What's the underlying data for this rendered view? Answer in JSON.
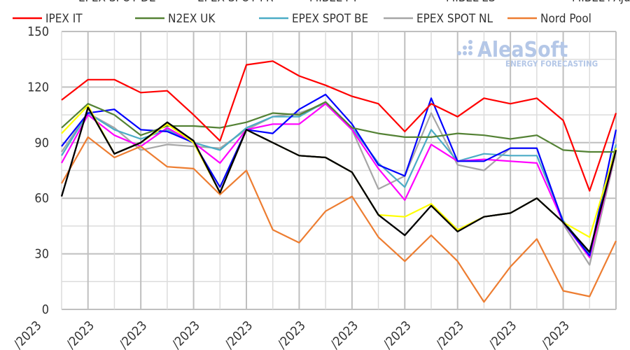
{
  "chart_data": {
    "type": "line",
    "title": "",
    "xlabel": "",
    "ylabel": "",
    "ylim": [
      0,
      150
    ],
    "yticks": [
      "0",
      "30",
      "60",
      "90",
      "120",
      "150"
    ],
    "x_tick_labels": [
      "/2023",
      "/2023",
      "/2023",
      "/2023",
      "/2023",
      "/2023",
      "/2023",
      "/2023",
      "/2023",
      "/2023",
      "/2023"
    ],
    "grid": true,
    "legend_position": "top",
    "series": [
      {
        "name": "EPEX SPOT DE",
        "color": "#0000ff",
        "values": [
          88,
          106,
          108,
          97,
          96,
          90,
          66,
          97,
          95,
          108,
          116,
          100,
          78,
          72,
          114,
          80,
          80,
          87,
          87,
          47,
          29,
          97
        ]
      },
      {
        "name": "EPEX SPOT FR",
        "color": "#ff00ff",
        "values": [
          79,
          105,
          94,
          88,
          98,
          90,
          79,
          97,
          100,
          100,
          111,
          97,
          76,
          59,
          89,
          80,
          81,
          80,
          79,
          47,
          28,
          86
        ]
      },
      {
        "name": "MIBEL PT",
        "color": "#1a1a1a",
        "values": [
          61,
          109,
          84,
          90,
          101,
          91,
          63,
          97,
          90,
          83,
          82,
          74,
          51,
          40,
          56,
          42,
          50,
          52,
          60,
          47,
          31,
          86
        ]
      },
      {
        "name": "MIBEL ES",
        "color": "#000000",
        "values": [
          61,
          109,
          84,
          90,
          101,
          91,
          63,
          97,
          90,
          83,
          82,
          74,
          51,
          40,
          56,
          42,
          50,
          52,
          60,
          47,
          31,
          86
        ]
      },
      {
        "name": "MIBEL+Ajuste",
        "color": "#ffff00",
        "values": [
          95,
          110,
          84,
          90,
          100,
          90,
          63,
          97,
          90,
          83,
          82,
          74,
          51,
          50,
          57,
          43,
          50,
          52,
          60,
          47,
          39,
          87
        ]
      },
      {
        "name": "IPEX IT",
        "color": "#ff0000",
        "values": [
          113,
          124,
          124,
          117,
          118,
          105,
          91,
          132,
          134,
          126,
          121,
          115,
          111,
          96,
          111,
          104,
          114,
          111,
          114,
          102,
          64,
          106
        ]
      },
      {
        "name": "N2EX UK",
        "color": "#548235",
        "values": [
          98,
          111,
          105,
          94,
          99,
          99,
          98,
          101,
          106,
          105,
          112,
          98,
          95,
          93,
          93,
          95,
          94,
          92,
          94,
          86,
          85,
          85
        ]
      },
      {
        "name": "EPEX SPOT BE",
        "color": "#4bacc6",
        "values": [
          83,
          106,
          97,
          92,
          97,
          90,
          86,
          98,
          104,
          104,
          112,
          98,
          79,
          66,
          97,
          80,
          84,
          83,
          83,
          48,
          30,
          89
        ]
      },
      {
        "name": "EPEX SPOT NL",
        "color": "#a6a6a6",
        "values": [
          85,
          106,
          98,
          86,
          89,
          88,
          87,
          97,
          104,
          106,
          111,
          97,
          65,
          72,
          106,
          78,
          75,
          87,
          87,
          46,
          24,
          85
        ]
      },
      {
        "name": "Nord Pool",
        "color": "#ed7d31",
        "values": [
          68,
          93,
          82,
          88,
          77,
          76,
          62,
          75,
          43,
          36,
          53,
          61,
          39,
          26,
          40,
          26,
          4,
          23,
          38,
          10,
          7,
          37
        ]
      }
    ],
    "draw_order": [
      "EPEX SPOT NL",
      "EPEX SPOT BE",
      "EPEX SPOT FR",
      "EPEX SPOT DE",
      "Nord Pool",
      "N2EX UK",
      "MIBEL+Ajuste",
      "MIBEL PT",
      "MIBEL ES",
      "IPEX IT"
    ]
  },
  "watermark": {
    "brand": "AleaSoft",
    "tagline": "ENERGY FORECASTING"
  }
}
